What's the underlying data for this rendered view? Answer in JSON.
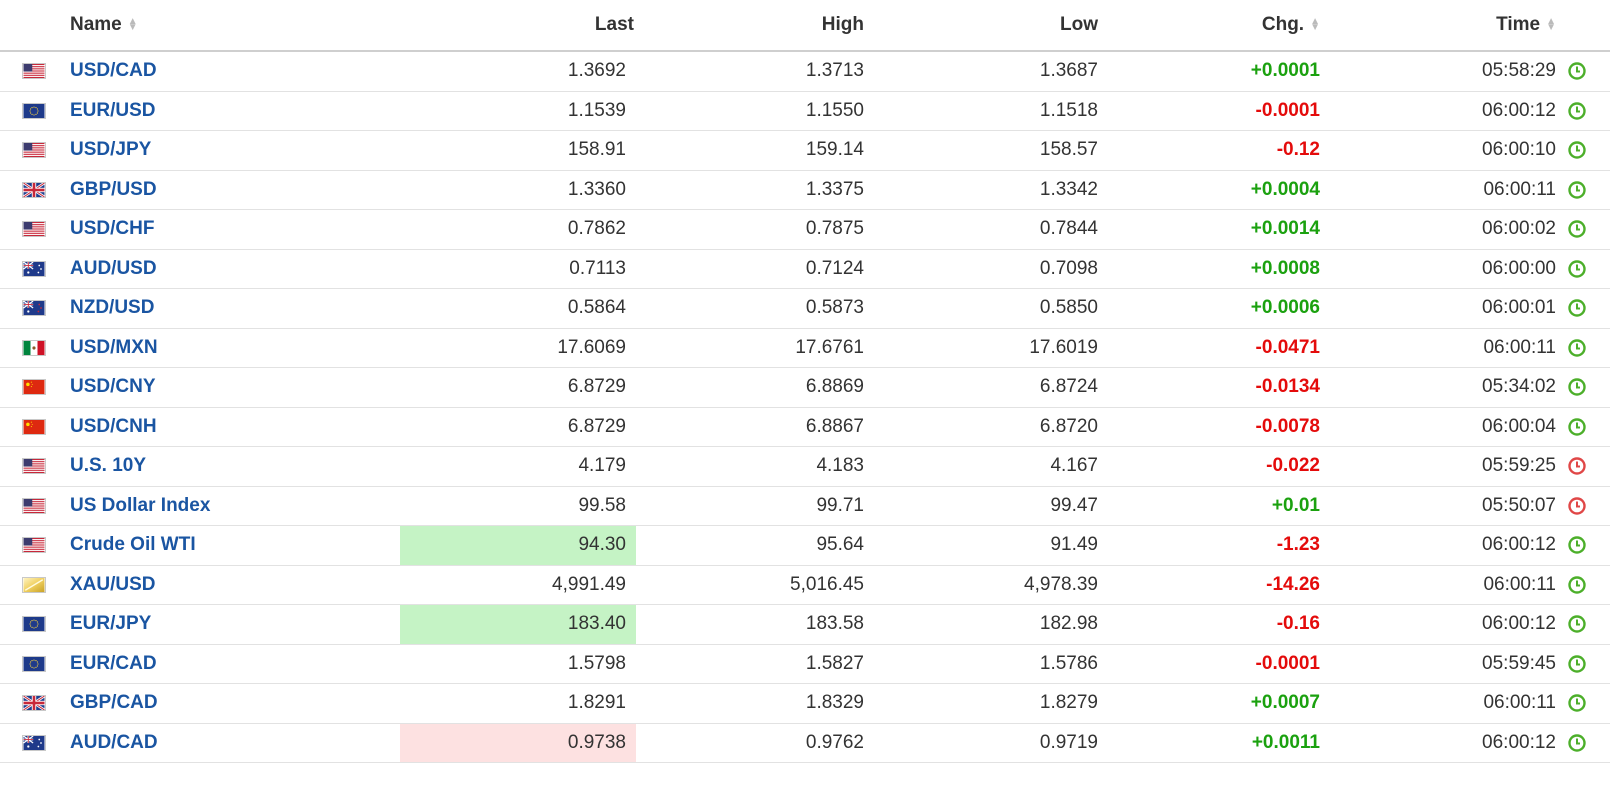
{
  "columns": {
    "name": "Name",
    "last": "Last",
    "high": "High",
    "low": "Low",
    "chg": "Chg.",
    "time": "Time"
  },
  "colors": {
    "link": "#1a55a2",
    "positive": "#1ba10f",
    "negative": "#e40b0b",
    "highlight_up": "#c5f3c5",
    "highlight_down": "#fde1e1",
    "clock_open": "#4caf2a",
    "clock_closed": "#e04747"
  },
  "rows": [
    {
      "flag": "us-flag-icon",
      "name": "USD/CAD",
      "last": "1.3692",
      "high": "1.3713",
      "low": "1.3687",
      "chg": "+0.0001",
      "time": "05:58:29",
      "dir": "pos",
      "hl": "",
      "clock": "open"
    },
    {
      "flag": "eu-flag-icon",
      "name": "EUR/USD",
      "last": "1.1539",
      "high": "1.1550",
      "low": "1.1518",
      "chg": "-0.0001",
      "time": "06:00:12",
      "dir": "neg",
      "hl": "",
      "clock": "open"
    },
    {
      "flag": "us-flag-icon",
      "name": "USD/JPY",
      "last": "158.91",
      "high": "159.14",
      "low": "158.57",
      "chg": "-0.12",
      "time": "06:00:10",
      "dir": "neg",
      "hl": "",
      "clock": "open"
    },
    {
      "flag": "uk-flag-icon",
      "name": "GBP/USD",
      "last": "1.3360",
      "high": "1.3375",
      "low": "1.3342",
      "chg": "+0.0004",
      "time": "06:00:11",
      "dir": "pos",
      "hl": "",
      "clock": "open"
    },
    {
      "flag": "us-flag-icon",
      "name": "USD/CHF",
      "last": "0.7862",
      "high": "0.7875",
      "low": "0.7844",
      "chg": "+0.0014",
      "time": "06:00:02",
      "dir": "pos",
      "hl": "",
      "clock": "open"
    },
    {
      "flag": "au-flag-icon",
      "name": "AUD/USD",
      "last": "0.7113",
      "high": "0.7124",
      "low": "0.7098",
      "chg": "+0.0008",
      "time": "06:00:00",
      "dir": "pos",
      "hl": "",
      "clock": "open"
    },
    {
      "flag": "nz-flag-icon",
      "name": "NZD/USD",
      "last": "0.5864",
      "high": "0.5873",
      "low": "0.5850",
      "chg": "+0.0006",
      "time": "06:00:01",
      "dir": "pos",
      "hl": "",
      "clock": "open"
    },
    {
      "flag": "mx-flag-icon",
      "name": "USD/MXN",
      "last": "17.6069",
      "high": "17.6761",
      "low": "17.6019",
      "chg": "-0.0471",
      "time": "06:00:11",
      "dir": "neg",
      "hl": "",
      "clock": "open"
    },
    {
      "flag": "cn-flag-icon",
      "name": "USD/CNY",
      "last": "6.8729",
      "high": "6.8869",
      "low": "6.8724",
      "chg": "-0.0134",
      "time": "05:34:02",
      "dir": "neg",
      "hl": "",
      "clock": "open"
    },
    {
      "flag": "cn-flag-icon",
      "name": "USD/CNH",
      "last": "6.8729",
      "high": "6.8867",
      "low": "6.8720",
      "chg": "-0.0078",
      "time": "06:00:04",
      "dir": "neg",
      "hl": "",
      "clock": "open"
    },
    {
      "flag": "us-flag-icon",
      "name": "U.S. 10Y",
      "last": "4.179",
      "high": "4.183",
      "low": "4.167",
      "chg": "-0.022",
      "time": "05:59:25",
      "dir": "neg",
      "hl": "",
      "clock": "closed"
    },
    {
      "flag": "us-flag-icon",
      "name": "US Dollar Index",
      "last": "99.58",
      "high": "99.71",
      "low": "99.47",
      "chg": "+0.01",
      "time": "05:50:07",
      "dir": "pos",
      "hl": "",
      "clock": "closed"
    },
    {
      "flag": "us-flag-icon",
      "name": "Crude Oil WTI",
      "last": "94.30",
      "high": "95.64",
      "low": "91.49",
      "chg": "-1.23",
      "time": "06:00:12",
      "dir": "neg",
      "hl": "up",
      "clock": "open"
    },
    {
      "flag": "gold-icon",
      "name": "XAU/USD",
      "last": "4,991.49",
      "high": "5,016.45",
      "low": "4,978.39",
      "chg": "-14.26",
      "time": "06:00:11",
      "dir": "neg",
      "hl": "",
      "clock": "open"
    },
    {
      "flag": "eu-flag-icon",
      "name": "EUR/JPY",
      "last": "183.40",
      "high": "183.58",
      "low": "182.98",
      "chg": "-0.16",
      "time": "06:00:12",
      "dir": "neg",
      "hl": "up",
      "clock": "open"
    },
    {
      "flag": "eu-flag-icon",
      "name": "EUR/CAD",
      "last": "1.5798",
      "high": "1.5827",
      "low": "1.5786",
      "chg": "-0.0001",
      "time": "05:59:45",
      "dir": "neg",
      "hl": "",
      "clock": "open"
    },
    {
      "flag": "uk-flag-icon",
      "name": "GBP/CAD",
      "last": "1.8291",
      "high": "1.8329",
      "low": "1.8279",
      "chg": "+0.0007",
      "time": "06:00:11",
      "dir": "pos",
      "hl": "",
      "clock": "open"
    },
    {
      "flag": "au-flag-icon",
      "name": "AUD/CAD",
      "last": "0.9738",
      "high": "0.9762",
      "low": "0.9719",
      "chg": "+0.0011",
      "time": "06:00:12",
      "dir": "pos",
      "hl": "down",
      "clock": "open"
    }
  ]
}
